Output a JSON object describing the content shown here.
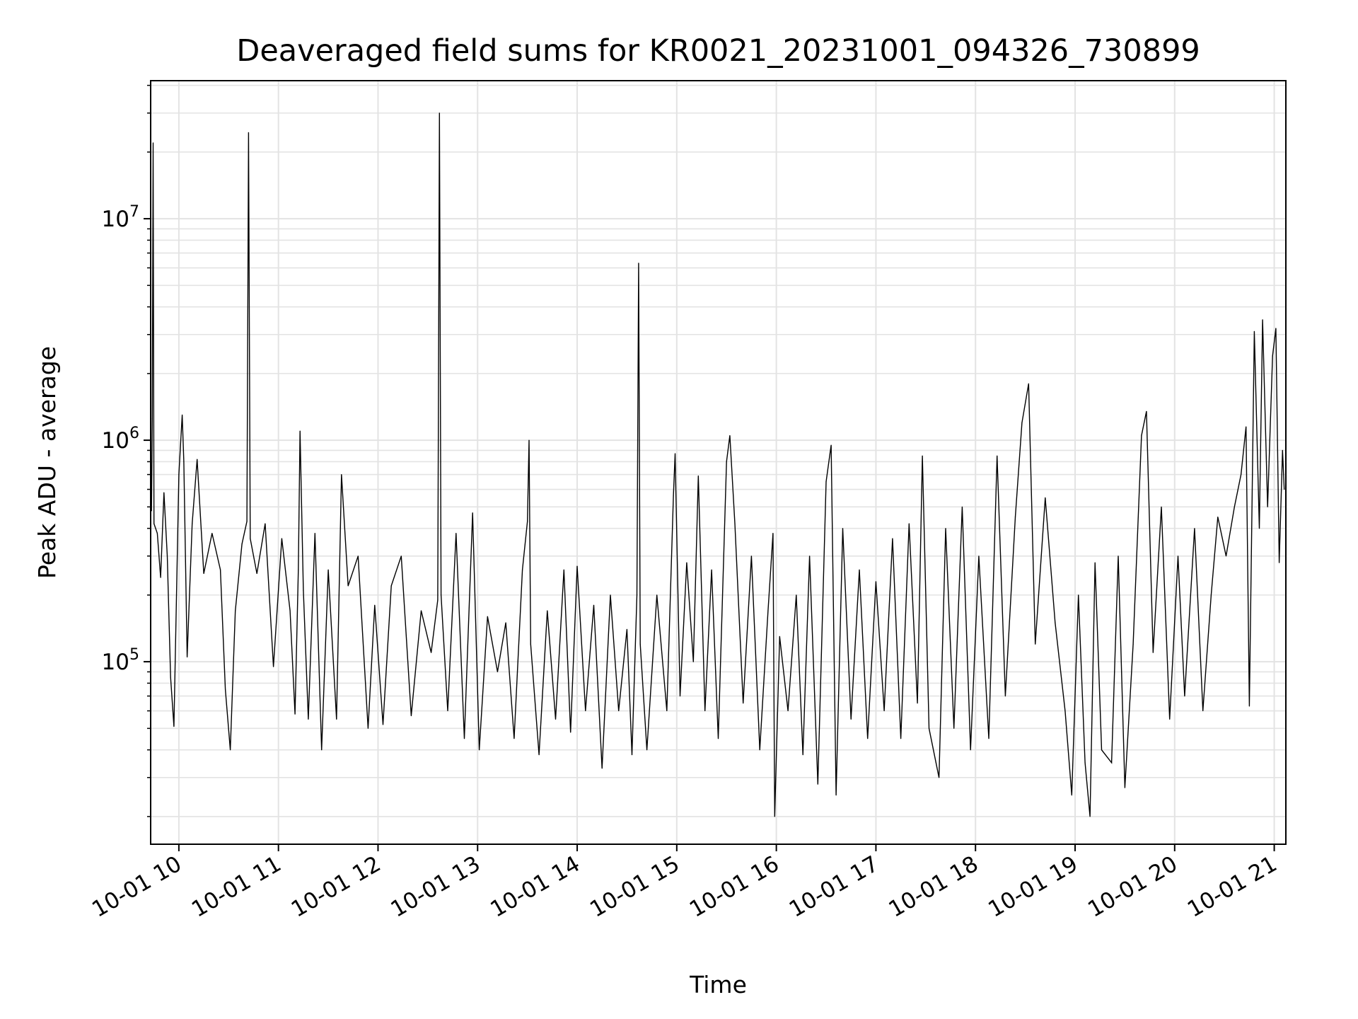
{
  "chart_data": {
    "type": "line",
    "title": "Deaveraged field sums for KR0021_20231001_094326_730899",
    "xlabel": "Time",
    "ylabel": "Peak ADU - average",
    "x_axis": {
      "scale": "time",
      "range": [
        "2023-10-01T09:43:00",
        "2023-10-01T21:07:00"
      ],
      "tick_values": [
        "2023-10-01T10:00",
        "2023-10-01T11:00",
        "2023-10-01T12:00",
        "2023-10-01T13:00",
        "2023-10-01T14:00",
        "2023-10-01T15:00",
        "2023-10-01T16:00",
        "2023-10-01T17:00",
        "2023-10-01T18:00",
        "2023-10-01T19:00",
        "2023-10-01T20:00",
        "2023-10-01T21:00"
      ],
      "tick_labels": [
        "10-01 10",
        "10-01 11",
        "10-01 12",
        "10-01 13",
        "10-01 14",
        "10-01 15",
        "10-01 16",
        "10-01 17",
        "10-01 18",
        "10-01 19",
        "10-01 20",
        "10-01 21"
      ],
      "tick_label_rotation_deg": 30
    },
    "y_axis": {
      "scale": "log",
      "range": [
        15000,
        42000000
      ],
      "major_ticks": [
        {
          "value": 100000,
          "base": "10",
          "exp": "5"
        },
        {
          "value": 1000000,
          "base": "10",
          "exp": "6"
        },
        {
          "value": 10000000,
          "base": "10",
          "exp": "7"
        }
      ]
    },
    "grid": true,
    "legend": "none",
    "colors": {
      "line": "#000000",
      "grid": "#e3e3e3",
      "axes": "#000000",
      "background": "#ffffff"
    },
    "series": [
      {
        "points": [
          [
            "2023-10-01T09:43:30",
            480000
          ],
          [
            "2023-10-01T09:44:00",
            1250000
          ],
          [
            "2023-10-01T09:44:30",
            22000000
          ],
          [
            "2023-10-01T09:45:00",
            420000
          ],
          [
            "2023-10-01T09:47:00",
            380000
          ],
          [
            "2023-10-01T09:49:00",
            240000
          ],
          [
            "2023-10-01T09:51:00",
            580000
          ],
          [
            "2023-10-01T09:53:00",
            300000
          ],
          [
            "2023-10-01T09:55:00",
            85000
          ],
          [
            "2023-10-01T09:57:00",
            51000
          ],
          [
            "2023-10-01T10:00:00",
            700000
          ],
          [
            "2023-10-01T10:02:00",
            1300000
          ],
          [
            "2023-10-01T10:03:00",
            800000
          ],
          [
            "2023-10-01T10:05:00",
            105000
          ],
          [
            "2023-10-01T10:08:00",
            420000
          ],
          [
            "2023-10-01T10:11:00",
            820000
          ],
          [
            "2023-10-01T10:15:00",
            250000
          ],
          [
            "2023-10-01T10:20:00",
            380000
          ],
          [
            "2023-10-01T10:25:00",
            260000
          ],
          [
            "2023-10-01T10:28:00",
            75000
          ],
          [
            "2023-10-01T10:31:00",
            40000
          ],
          [
            "2023-10-01T10:34:00",
            170000
          ],
          [
            "2023-10-01T10:38:00",
            340000
          ],
          [
            "2023-10-01T10:41:00",
            430000
          ],
          [
            "2023-10-01T10:42:00",
            24500000
          ],
          [
            "2023-10-01T10:43:00",
            360000
          ],
          [
            "2023-10-01T10:47:00",
            250000
          ],
          [
            "2023-10-01T10:52:00",
            420000
          ],
          [
            "2023-10-01T10:57:00",
            95000
          ],
          [
            "2023-10-01T11:02:00",
            360000
          ],
          [
            "2023-10-01T11:07:00",
            170000
          ],
          [
            "2023-10-01T11:10:00",
            58000
          ],
          [
            "2023-10-01T11:12:00",
            260000
          ],
          [
            "2023-10-01T11:13:00",
            1100000
          ],
          [
            "2023-10-01T11:15:00",
            210000
          ],
          [
            "2023-10-01T11:18:00",
            55000
          ],
          [
            "2023-10-01T11:22:00",
            380000
          ],
          [
            "2023-10-01T11:26:00",
            40000
          ],
          [
            "2023-10-01T11:30:00",
            260000
          ],
          [
            "2023-10-01T11:35:00",
            55000
          ],
          [
            "2023-10-01T11:38:00",
            700000
          ],
          [
            "2023-10-01T11:42:00",
            220000
          ],
          [
            "2023-10-01T11:48:00",
            300000
          ],
          [
            "2023-10-01T11:54:00",
            50000
          ],
          [
            "2023-10-01T11:58:00",
            180000
          ],
          [
            "2023-10-01T12:03:00",
            52000
          ],
          [
            "2023-10-01T12:08:00",
            220000
          ],
          [
            "2023-10-01T12:14:00",
            300000
          ],
          [
            "2023-10-01T12:20:00",
            57000
          ],
          [
            "2023-10-01T12:26:00",
            170000
          ],
          [
            "2023-10-01T12:32:00",
            110000
          ],
          [
            "2023-10-01T12:36:00",
            190000
          ],
          [
            "2023-10-01T12:37:00",
            30000000
          ],
          [
            "2023-10-01T12:38:00",
            200000
          ],
          [
            "2023-10-01T12:42:00",
            60000
          ],
          [
            "2023-10-01T12:47:00",
            380000
          ],
          [
            "2023-10-01T12:52:00",
            45000
          ],
          [
            "2023-10-01T12:57:00",
            470000
          ],
          [
            "2023-10-01T13:01:00",
            40000
          ],
          [
            "2023-10-01T13:06:00",
            160000
          ],
          [
            "2023-10-01T13:12:00",
            90000
          ],
          [
            "2023-10-01T13:17:00",
            150000
          ],
          [
            "2023-10-01T13:22:00",
            45000
          ],
          [
            "2023-10-01T13:27:00",
            260000
          ],
          [
            "2023-10-01T13:30:00",
            430000
          ],
          [
            "2023-10-01T13:31:00",
            1000000
          ],
          [
            "2023-10-01T13:32:00",
            120000
          ],
          [
            "2023-10-01T13:37:00",
            38000
          ],
          [
            "2023-10-01T13:42:00",
            170000
          ],
          [
            "2023-10-01T13:47:00",
            55000
          ],
          [
            "2023-10-01T13:52:00",
            260000
          ],
          [
            "2023-10-01T13:56:00",
            48000
          ],
          [
            "2023-10-01T14:00:00",
            270000
          ],
          [
            "2023-10-01T14:05:00",
            60000
          ],
          [
            "2023-10-01T14:10:00",
            180000
          ],
          [
            "2023-10-01T14:15:00",
            33000
          ],
          [
            "2023-10-01T14:20:00",
            200000
          ],
          [
            "2023-10-01T14:25:00",
            60000
          ],
          [
            "2023-10-01T14:30:00",
            140000
          ],
          [
            "2023-10-01T14:33:00",
            38000
          ],
          [
            "2023-10-01T14:36:00",
            200000
          ],
          [
            "2023-10-01T14:37:00",
            6300000
          ],
          [
            "2023-10-01T14:38:00",
            120000
          ],
          [
            "2023-10-01T14:42:00",
            40000
          ],
          [
            "2023-10-01T14:48:00",
            200000
          ],
          [
            "2023-10-01T14:54:00",
            60000
          ],
          [
            "2023-10-01T14:58:00",
            560000
          ],
          [
            "2023-10-01T14:59:00",
            870000
          ],
          [
            "2023-10-01T15:02:00",
            70000
          ],
          [
            "2023-10-01T15:06:00",
            280000
          ],
          [
            "2023-10-01T15:10:00",
            100000
          ],
          [
            "2023-10-01T15:13:00",
            690000
          ],
          [
            "2023-10-01T15:17:00",
            60000
          ],
          [
            "2023-10-01T15:21:00",
            260000
          ],
          [
            "2023-10-01T15:25:00",
            45000
          ],
          [
            "2023-10-01T15:30:00",
            800000
          ],
          [
            "2023-10-01T15:32:00",
            1050000
          ],
          [
            "2023-10-01T15:35:00",
            420000
          ],
          [
            "2023-10-01T15:40:00",
            65000
          ],
          [
            "2023-10-01T15:45:00",
            300000
          ],
          [
            "2023-10-01T15:50:00",
            40000
          ],
          [
            "2023-10-01T15:55:00",
            170000
          ],
          [
            "2023-10-01T15:58:00",
            380000
          ],
          [
            "2023-10-01T15:59:00",
            20000
          ],
          [
            "2023-10-01T16:02:00",
            130000
          ],
          [
            "2023-10-01T16:07:00",
            60000
          ],
          [
            "2023-10-01T16:12:00",
            200000
          ],
          [
            "2023-10-01T16:16:00",
            38000
          ],
          [
            "2023-10-01T16:20:00",
            300000
          ],
          [
            "2023-10-01T16:25:00",
            28000
          ],
          [
            "2023-10-01T16:30:00",
            650000
          ],
          [
            "2023-10-01T16:33:00",
            950000
          ],
          [
            "2023-10-01T16:36:00",
            25000
          ],
          [
            "2023-10-01T16:40:00",
            400000
          ],
          [
            "2023-10-01T16:45:00",
            55000
          ],
          [
            "2023-10-01T16:50:00",
            260000
          ],
          [
            "2023-10-01T16:55:00",
            45000
          ],
          [
            "2023-10-01T17:00:00",
            230000
          ],
          [
            "2023-10-01T17:05:00",
            60000
          ],
          [
            "2023-10-01T17:10:00",
            360000
          ],
          [
            "2023-10-01T17:15:00",
            45000
          ],
          [
            "2023-10-01T17:20:00",
            420000
          ],
          [
            "2023-10-01T17:25:00",
            65000
          ],
          [
            "2023-10-01T17:28:00",
            850000
          ],
          [
            "2023-10-01T17:32:00",
            50000
          ],
          [
            "2023-10-01T17:38:00",
            30000
          ],
          [
            "2023-10-01T17:42:00",
            400000
          ],
          [
            "2023-10-01T17:47:00",
            50000
          ],
          [
            "2023-10-01T17:52:00",
            500000
          ],
          [
            "2023-10-01T17:57:00",
            40000
          ],
          [
            "2023-10-01T18:02:00",
            300000
          ],
          [
            "2023-10-01T18:08:00",
            45000
          ],
          [
            "2023-10-01T18:13:00",
            850000
          ],
          [
            "2023-10-01T18:18:00",
            70000
          ],
          [
            "2023-10-01T18:24:00",
            450000
          ],
          [
            "2023-10-01T18:28:00",
            1200000
          ],
          [
            "2023-10-01T18:32:00",
            1800000
          ],
          [
            "2023-10-01T18:36:00",
            120000
          ],
          [
            "2023-10-01T18:42:00",
            550000
          ],
          [
            "2023-10-01T18:48:00",
            150000
          ],
          [
            "2023-10-01T18:54:00",
            60000
          ],
          [
            "2023-10-01T18:58:00",
            25000
          ],
          [
            "2023-10-01T19:02:00",
            200000
          ],
          [
            "2023-10-01T19:06:00",
            35000
          ],
          [
            "2023-10-01T19:09:00",
            20000
          ],
          [
            "2023-10-01T19:12:00",
            280000
          ],
          [
            "2023-10-01T19:16:00",
            40000
          ],
          [
            "2023-10-01T19:22:00",
            35000
          ],
          [
            "2023-10-01T19:26:00",
            300000
          ],
          [
            "2023-10-01T19:30:00",
            27000
          ],
          [
            "2023-10-01T19:35:00",
            120000
          ],
          [
            "2023-10-01T19:40:00",
            1050000
          ],
          [
            "2023-10-01T19:43:00",
            1350000
          ],
          [
            "2023-10-01T19:47:00",
            110000
          ],
          [
            "2023-10-01T19:52:00",
            500000
          ],
          [
            "2023-10-01T19:57:00",
            55000
          ],
          [
            "2023-10-01T20:02:00",
            300000
          ],
          [
            "2023-10-01T20:06:00",
            70000
          ],
          [
            "2023-10-01T20:12:00",
            400000
          ],
          [
            "2023-10-01T20:17:00",
            60000
          ],
          [
            "2023-10-01T20:22:00",
            200000
          ],
          [
            "2023-10-01T20:26:00",
            450000
          ],
          [
            "2023-10-01T20:31:00",
            300000
          ],
          [
            "2023-10-01T20:36:00",
            500000
          ],
          [
            "2023-10-01T20:40:00",
            700000
          ],
          [
            "2023-10-01T20:43:00",
            1150000
          ],
          [
            "2023-10-01T20:45:00",
            63000
          ],
          [
            "2023-10-01T20:48:00",
            3100000
          ],
          [
            "2023-10-01T20:51:00",
            400000
          ],
          [
            "2023-10-01T20:53:00",
            3500000
          ],
          [
            "2023-10-01T20:56:00",
            500000
          ],
          [
            "2023-10-01T20:59:00",
            2400000
          ],
          [
            "2023-10-01T21:01:00",
            3200000
          ],
          [
            "2023-10-01T21:03:00",
            280000
          ],
          [
            "2023-10-01T21:05:00",
            900000
          ],
          [
            "2023-10-01T21:06:00",
            600000
          ]
        ]
      }
    ]
  }
}
